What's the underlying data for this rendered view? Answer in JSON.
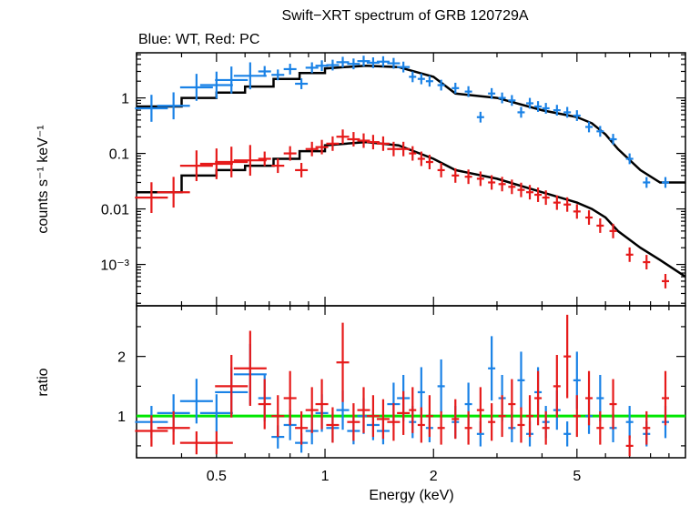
{
  "title": "Swift−XRT spectrum of GRB 120729A",
  "subtitle": "Blue: WT, Red: PC",
  "colors": {
    "wt": "#1a82e6",
    "pc": "#e61a1a",
    "model": "#000000",
    "unity": "#00e600"
  },
  "chart_data": [
    {
      "type": "scatter",
      "panel": "spectrum",
      "ylabel": "counts s⁻¹ keV⁻¹",
      "xscale": "log",
      "yscale": "log",
      "xlim": [
        0.3,
        10
      ],
      "ylim": [
        0.00018,
        6.5
      ],
      "x_ticks": [
        "0.5",
        "1",
        "2",
        "5"
      ],
      "y_ticks": [
        "1",
        "0.1",
        "0.01",
        "10⁻³"
      ],
      "series": [
        {
          "name": "WT",
          "points": [
            [
              0.33,
              0.65
            ],
            [
              0.38,
              0.72
            ],
            [
              0.44,
              1.55
            ],
            [
              0.5,
              1.7
            ],
            [
              0.55,
              2.1
            ],
            [
              0.62,
              2.5
            ],
            [
              0.68,
              3.0
            ],
            [
              0.74,
              2.6
            ],
            [
              0.8,
              3.3
            ],
            [
              0.86,
              1.8
            ],
            [
              0.92,
              3.5
            ],
            [
              0.98,
              3.8
            ],
            [
              1.05,
              3.9
            ],
            [
              1.12,
              4.4
            ],
            [
              1.2,
              4.1
            ],
            [
              1.28,
              4.6
            ],
            [
              1.36,
              4.3
            ],
            [
              1.45,
              4.5
            ],
            [
              1.55,
              4.2
            ],
            [
              1.65,
              3.6
            ],
            [
              1.75,
              2.4
            ],
            [
              1.85,
              2.2
            ],
            [
              1.95,
              2.0
            ],
            [
              2.1,
              1.7
            ],
            [
              2.3,
              1.5
            ],
            [
              2.5,
              1.3
            ],
            [
              2.7,
              0.45
            ],
            [
              2.9,
              1.2
            ],
            [
              3.1,
              1.0
            ],
            [
              3.3,
              0.9
            ],
            [
              3.5,
              0.55
            ],
            [
              3.7,
              0.8
            ],
            [
              3.9,
              0.7
            ],
            [
              4.1,
              0.65
            ],
            [
              4.4,
              0.6
            ],
            [
              4.7,
              0.55
            ],
            [
              5.0,
              0.48
            ],
            [
              5.4,
              0.3
            ],
            [
              5.8,
              0.25
            ],
            [
              6.3,
              0.18
            ],
            [
              7.0,
              0.08
            ],
            [
              7.8,
              0.03
            ],
            [
              8.8,
              0.03
            ]
          ]
        },
        {
          "name": "PC",
          "points": [
            [
              0.33,
              0.016
            ],
            [
              0.38,
              0.02
            ],
            [
              0.44,
              0.06
            ],
            [
              0.5,
              0.065
            ],
            [
              0.55,
              0.07
            ],
            [
              0.62,
              0.075
            ],
            [
              0.68,
              0.08
            ],
            [
              0.74,
              0.06
            ],
            [
              0.8,
              0.1
            ],
            [
              0.86,
              0.05
            ],
            [
              0.92,
              0.12
            ],
            [
              0.98,
              0.13
            ],
            [
              1.05,
              0.15
            ],
            [
              1.12,
              0.2
            ],
            [
              1.2,
              0.18
            ],
            [
              1.28,
              0.17
            ],
            [
              1.36,
              0.16
            ],
            [
              1.45,
              0.15
            ],
            [
              1.55,
              0.12
            ],
            [
              1.65,
              0.12
            ],
            [
              1.75,
              0.1
            ],
            [
              1.85,
              0.08
            ],
            [
              1.95,
              0.07
            ],
            [
              2.1,
              0.05
            ],
            [
              2.3,
              0.04
            ],
            [
              2.5,
              0.038
            ],
            [
              2.7,
              0.035
            ],
            [
              2.9,
              0.03
            ],
            [
              3.1,
              0.028
            ],
            [
              3.3,
              0.025
            ],
            [
              3.5,
              0.022
            ],
            [
              3.7,
              0.02
            ],
            [
              3.9,
              0.018
            ],
            [
              4.1,
              0.016
            ],
            [
              4.4,
              0.013
            ],
            [
              4.7,
              0.012
            ],
            [
              5.0,
              0.009
            ],
            [
              5.4,
              0.007
            ],
            [
              5.8,
              0.005
            ],
            [
              6.3,
              0.004
            ],
            [
              7.0,
              0.0015
            ],
            [
              7.8,
              0.0011
            ],
            [
              8.8,
              0.0005
            ]
          ]
        },
        {
          "name": "model WT",
          "points": [
            [
              0.3,
              0.7
            ],
            [
              0.4,
              0.7
            ],
            [
              0.4,
              1.0
            ],
            [
              0.5,
              1.0
            ],
            [
              0.5,
              1.25
            ],
            [
              0.6,
              1.25
            ],
            [
              0.6,
              1.6
            ],
            [
              0.72,
              1.6
            ],
            [
              0.72,
              2.2
            ],
            [
              0.85,
              2.2
            ],
            [
              0.85,
              2.8
            ],
            [
              1.0,
              2.8
            ],
            [
              1.0,
              3.4
            ],
            [
              1.3,
              3.8
            ],
            [
              1.6,
              3.6
            ],
            [
              2.0,
              2.4
            ],
            [
              2.3,
              1.2
            ],
            [
              3.0,
              1.0
            ],
            [
              4.0,
              0.6
            ],
            [
              5.0,
              0.45
            ],
            [
              5.5,
              0.35
            ],
            [
              6.0,
              0.22
            ],
            [
              6.5,
              0.12
            ],
            [
              7.5,
              0.05
            ],
            [
              8.5,
              0.03
            ],
            [
              10,
              0.03
            ]
          ]
        },
        {
          "name": "model PC",
          "points": [
            [
              0.3,
              0.02
            ],
            [
              0.4,
              0.02
            ],
            [
              0.4,
              0.04
            ],
            [
              0.5,
              0.04
            ],
            [
              0.5,
              0.05
            ],
            [
              0.6,
              0.05
            ],
            [
              0.6,
              0.06
            ],
            [
              0.72,
              0.06
            ],
            [
              0.72,
              0.08
            ],
            [
              0.85,
              0.08
            ],
            [
              0.85,
              0.11
            ],
            [
              1.0,
              0.11
            ],
            [
              1.0,
              0.14
            ],
            [
              1.3,
              0.16
            ],
            [
              1.6,
              0.14
            ],
            [
              2.0,
              0.08
            ],
            [
              2.3,
              0.05
            ],
            [
              3.0,
              0.035
            ],
            [
              4.0,
              0.02
            ],
            [
              5.0,
              0.013
            ],
            [
              5.5,
              0.01
            ],
            [
              6.0,
              0.007
            ],
            [
              6.5,
              0.004
            ],
            [
              7.5,
              0.002
            ],
            [
              8.5,
              0.0012
            ],
            [
              10,
              0.0006
            ]
          ]
        }
      ]
    },
    {
      "type": "scatter",
      "panel": "ratio",
      "xlabel": "Energy (keV)",
      "ylabel": "ratio",
      "xscale": "log",
      "xlim": [
        0.3,
        10
      ],
      "ylim": [
        0.3,
        2.85
      ],
      "x_ticks": [
        "0.5",
        "1",
        "2",
        "5"
      ],
      "y_ticks": [
        "1",
        "2"
      ],
      "unity": 1,
      "series": [
        {
          "name": "WT",
          "points": [
            [
              0.33,
              0.9
            ],
            [
              0.38,
              1.05
            ],
            [
              0.44,
              1.25
            ],
            [
              0.5,
              1.05
            ],
            [
              0.55,
              1.4
            ],
            [
              0.62,
              1.7
            ],
            [
              0.68,
              1.3
            ],
            [
              0.74,
              0.65
            ],
            [
              0.8,
              0.85
            ],
            [
              0.86,
              0.55
            ],
            [
              0.92,
              0.75
            ],
            [
              0.98,
              1.05
            ],
            [
              1.05,
              0.8
            ],
            [
              1.12,
              1.1
            ],
            [
              1.2,
              0.75
            ],
            [
              1.28,
              1.0
            ],
            [
              1.36,
              0.85
            ],
            [
              1.45,
              0.75
            ],
            [
              1.55,
              1.2
            ],
            [
              1.65,
              1.3
            ],
            [
              1.75,
              0.9
            ],
            [
              1.85,
              1.4
            ],
            [
              1.95,
              0.8
            ],
            [
              2.1,
              1.5
            ],
            [
              2.3,
              0.9
            ],
            [
              2.5,
              1.2
            ],
            [
              2.7,
              0.7
            ],
            [
              2.9,
              1.8
            ],
            [
              3.1,
              1.3
            ],
            [
              3.3,
              0.8
            ],
            [
              3.5,
              1.6
            ],
            [
              3.7,
              0.7
            ],
            [
              3.9,
              1.4
            ],
            [
              4.1,
              0.9
            ],
            [
              4.4,
              1.1
            ],
            [
              4.7,
              0.7
            ],
            [
              5.0,
              1.6
            ],
            [
              5.4,
              1.0
            ],
            [
              5.8,
              1.3
            ],
            [
              6.3,
              0.8
            ],
            [
              7.0,
              0.9
            ],
            [
              7.8,
              0.7
            ],
            [
              8.8,
              0.9
            ]
          ]
        },
        {
          "name": "PC",
          "points": [
            [
              0.33,
              0.75
            ],
            [
              0.38,
              0.8
            ],
            [
              0.44,
              0.55
            ],
            [
              0.5,
              0.55
            ],
            [
              0.55,
              1.5
            ],
            [
              0.62,
              1.8
            ],
            [
              0.68,
              1.2
            ],
            [
              0.74,
              1.0
            ],
            [
              0.8,
              1.3
            ],
            [
              0.86,
              0.8
            ],
            [
              0.92,
              1.1
            ],
            [
              0.98,
              1.2
            ],
            [
              1.05,
              0.85
            ],
            [
              1.12,
              1.9
            ],
            [
              1.2,
              0.9
            ],
            [
              1.28,
              1.1
            ],
            [
              1.36,
              1.0
            ],
            [
              1.45,
              0.95
            ],
            [
              1.55,
              0.9
            ],
            [
              1.65,
              1.05
            ],
            [
              1.75,
              1.1
            ],
            [
              1.85,
              0.85
            ],
            [
              1.95,
              1.0
            ],
            [
              2.1,
              0.8
            ],
            [
              2.3,
              0.95
            ],
            [
              2.5,
              0.8
            ],
            [
              2.7,
              1.1
            ],
            [
              2.9,
              0.9
            ],
            [
              3.1,
              1.0
            ],
            [
              3.3,
              1.2
            ],
            [
              3.5,
              0.85
            ],
            [
              3.7,
              1.0
            ],
            [
              3.9,
              1.3
            ],
            [
              4.1,
              0.8
            ],
            [
              4.4,
              1.5
            ],
            [
              4.7,
              2.0
            ],
            [
              5.0,
              1.0
            ],
            [
              5.4,
              1.3
            ],
            [
              5.8,
              0.8
            ],
            [
              6.3,
              1.2
            ],
            [
              7.0,
              0.5
            ],
            [
              7.8,
              0.8
            ],
            [
              8.8,
              1.3
            ]
          ]
        }
      ]
    }
  ]
}
